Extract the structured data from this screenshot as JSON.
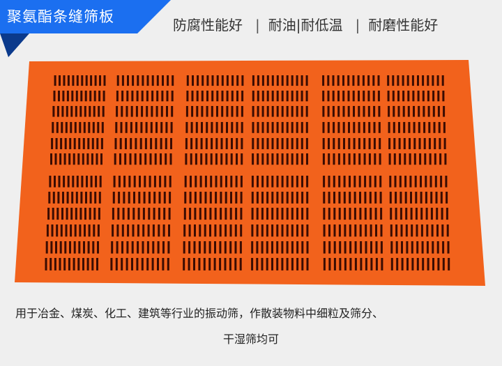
{
  "banner": {
    "title": "聚氨酯条缝筛板",
    "color": "#1b6ff0",
    "fold_color": "#0b3a8c"
  },
  "features": [
    "防腐性能好",
    "耐油|耐低温",
    "耐磨性能好"
  ],
  "separator": "|",
  "product": {
    "image": "orange polyurethane slotted screen panel",
    "color": "#f2621c",
    "slot_color": "#3a0c02"
  },
  "description": {
    "line1": "用于冶金、煤炭、化工、建筑等行业的振动筛，作散装物料中细粒及筛分、",
    "line2": "干湿筛均可"
  }
}
